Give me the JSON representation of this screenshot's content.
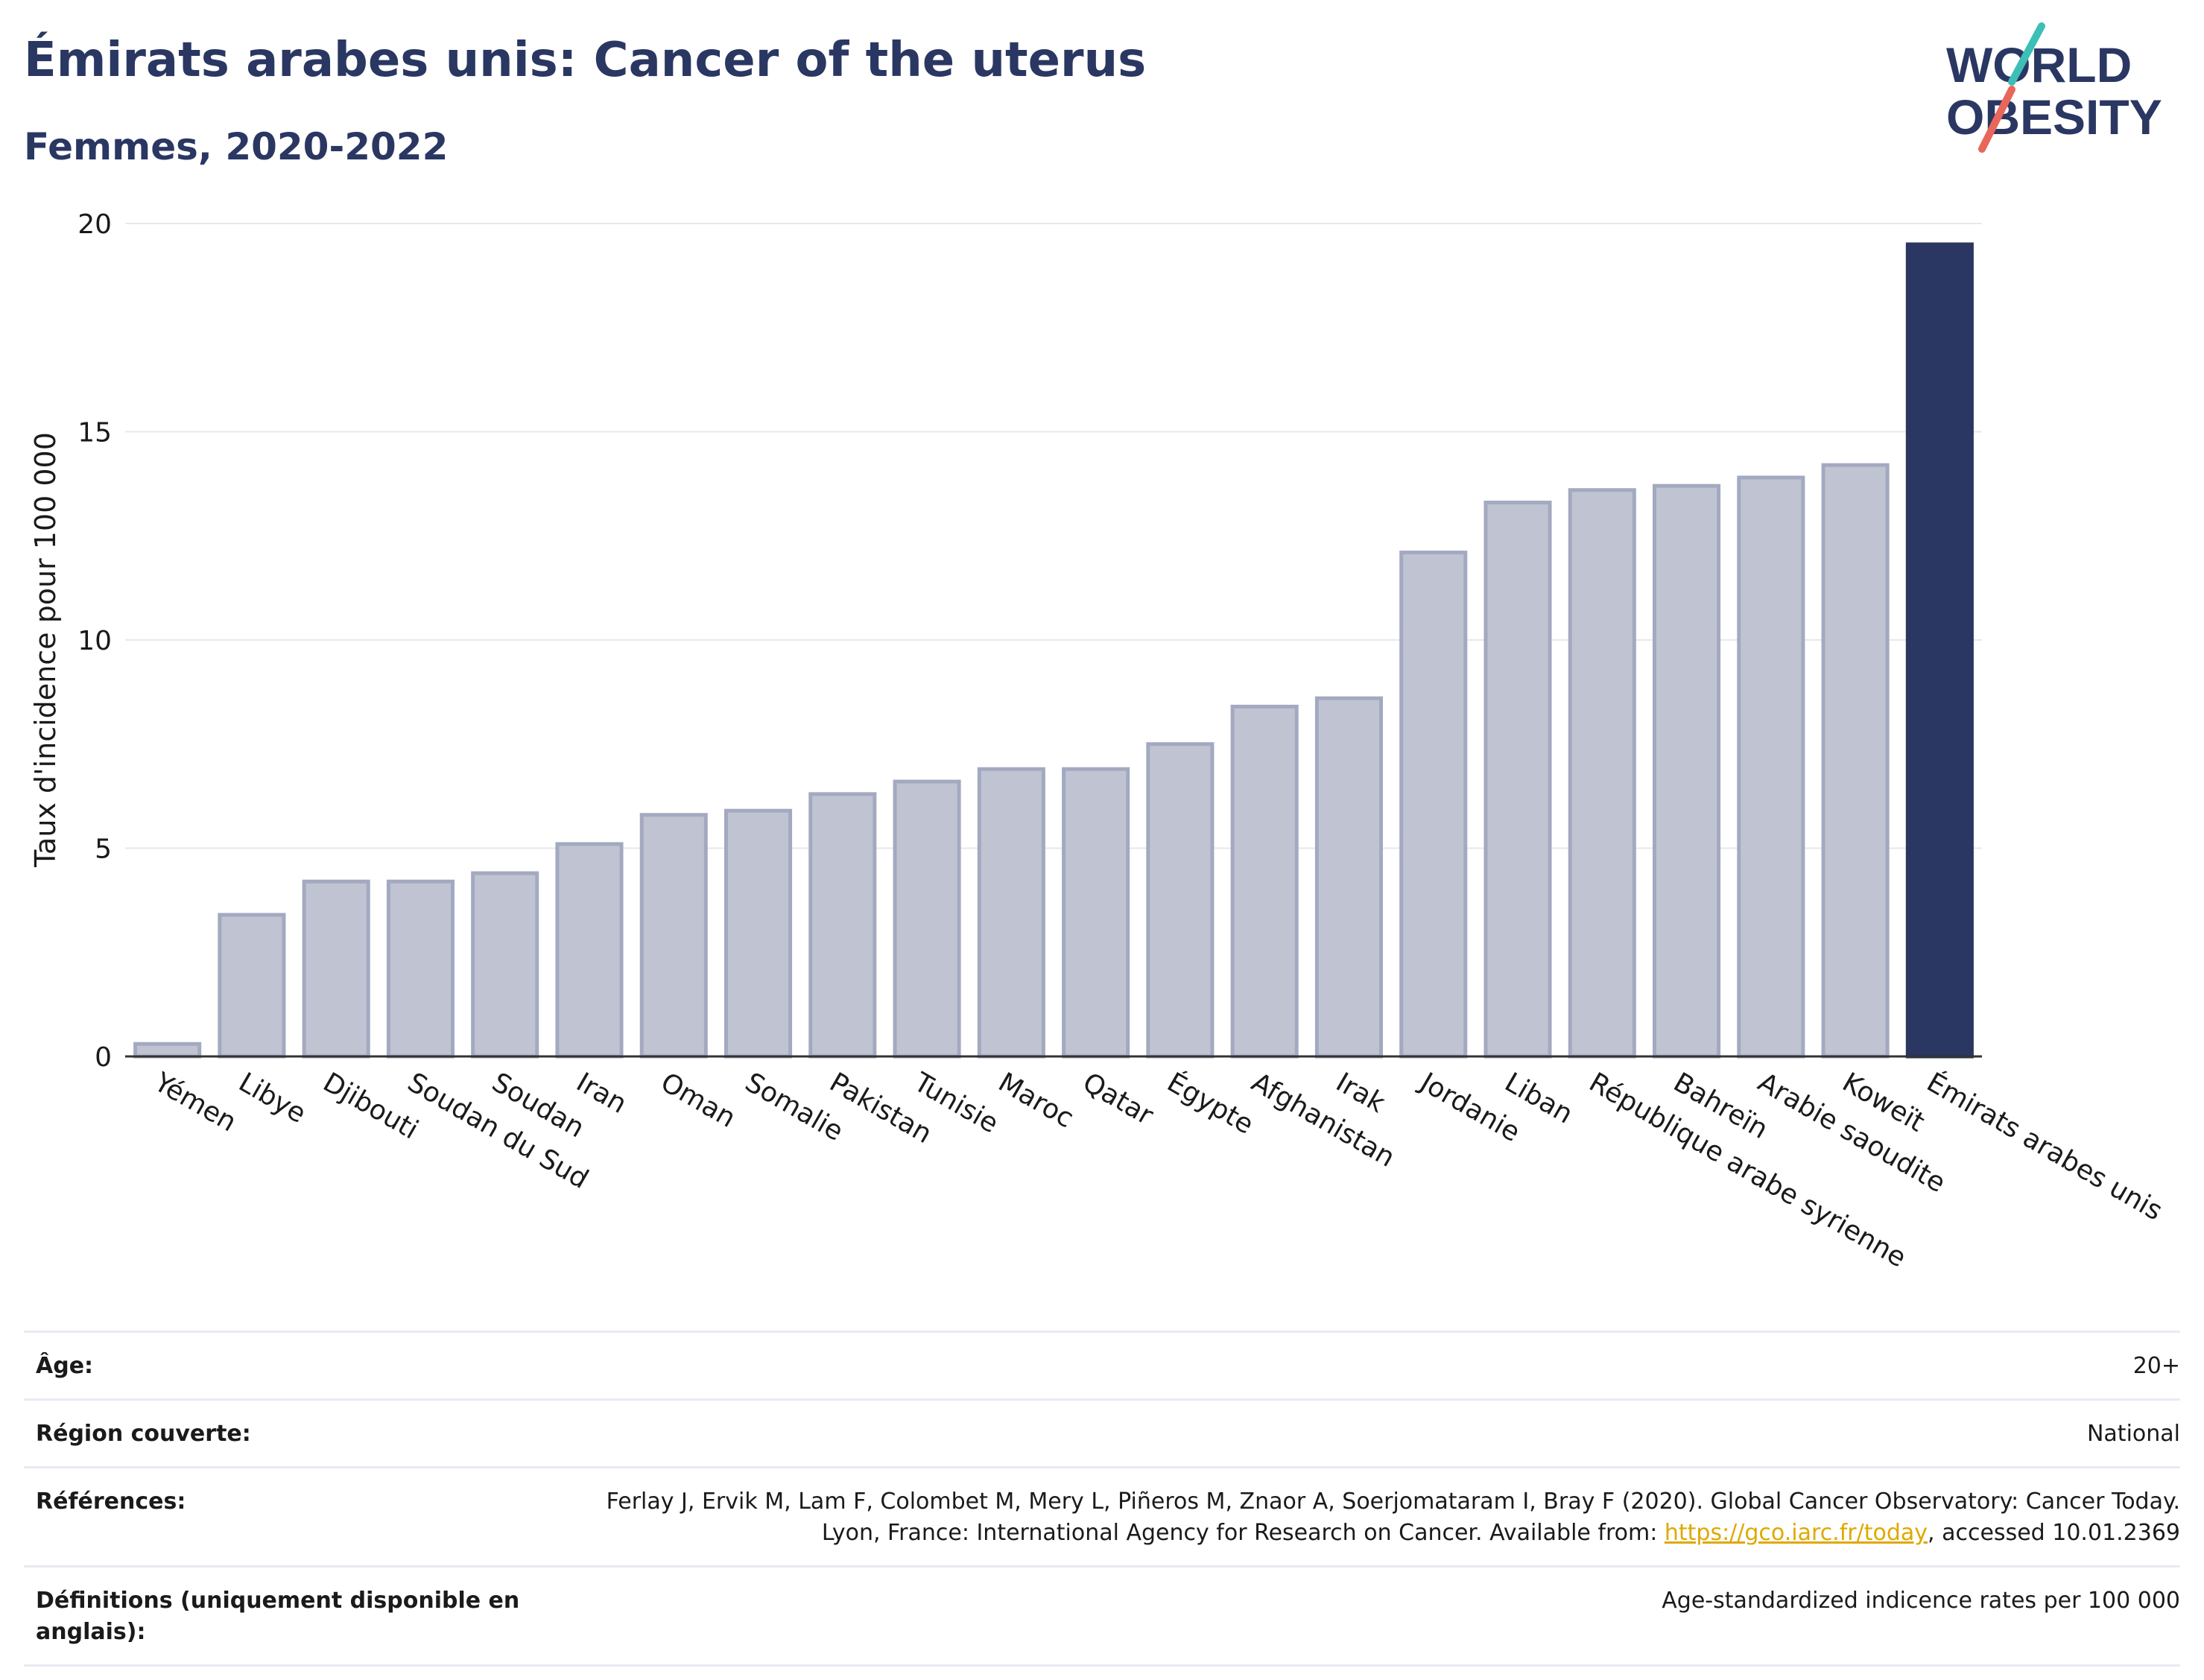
{
  "title": "Émirats arabes unis: Cancer of the uterus",
  "subtitle": "Femmes, 2020-2022",
  "logo": {
    "line1": "WORLD",
    "line2": "OBESITY",
    "accent_teal": "#3dbfb8",
    "accent_red": "#e8675a",
    "color": "#2a3762"
  },
  "chart_data": {
    "type": "bar",
    "ylabel": "Taux d'incidence pour 100 000",
    "ylim": [
      0,
      20
    ],
    "yticks": [
      0,
      5,
      10,
      15,
      20
    ],
    "categories": [
      "Yémen",
      "Libye",
      "Djibouti",
      "Soudan du Sud",
      "Soudan",
      "Iran",
      "Oman",
      "Somalie",
      "Pakistan",
      "Tunisie",
      "Maroc",
      "Qatar",
      "Égypte",
      "Afghanistan",
      "Irak",
      "Jordanie",
      "Liban",
      "République arabe syrienne",
      "Bahreïn",
      "Arabie saoudite",
      "Koweït",
      "Émirats arabes unis"
    ],
    "values": [
      0.3,
      3.4,
      4.2,
      4.2,
      4.4,
      5.1,
      5.8,
      5.9,
      6.3,
      6.6,
      6.9,
      6.9,
      7.5,
      8.4,
      8.6,
      12.1,
      13.3,
      13.6,
      13.7,
      13.9,
      14.2,
      19.5
    ],
    "highlight": "Émirats arabes unis",
    "bar_color": "#c0c4d2",
    "bar_edge": "#a3a9c0",
    "highlight_color": "#2a3762",
    "grid": true
  },
  "meta": {
    "age_label": "Âge:",
    "age_value": "20+",
    "region_label": "Région couverte:",
    "region_value": "National",
    "refs_label": "Références:",
    "refs_text_1": "Ferlay J, Ervik M, Lam F, Colombet M, Mery L, Piñeros M, Znaor A, Soerjomataram I, Bray F (2020). Global Cancer Observatory: Cancer Today. Lyon, France: International Agency for Research on Cancer. Available from: ",
    "refs_link": "https://gco.iarc.fr/today",
    "refs_text_2": ", accessed 10.01.2369",
    "defs_label": "Définitions (uniquement disponible en anglais):",
    "defs_value": "Age-standardized indicence rates per 100 000"
  }
}
